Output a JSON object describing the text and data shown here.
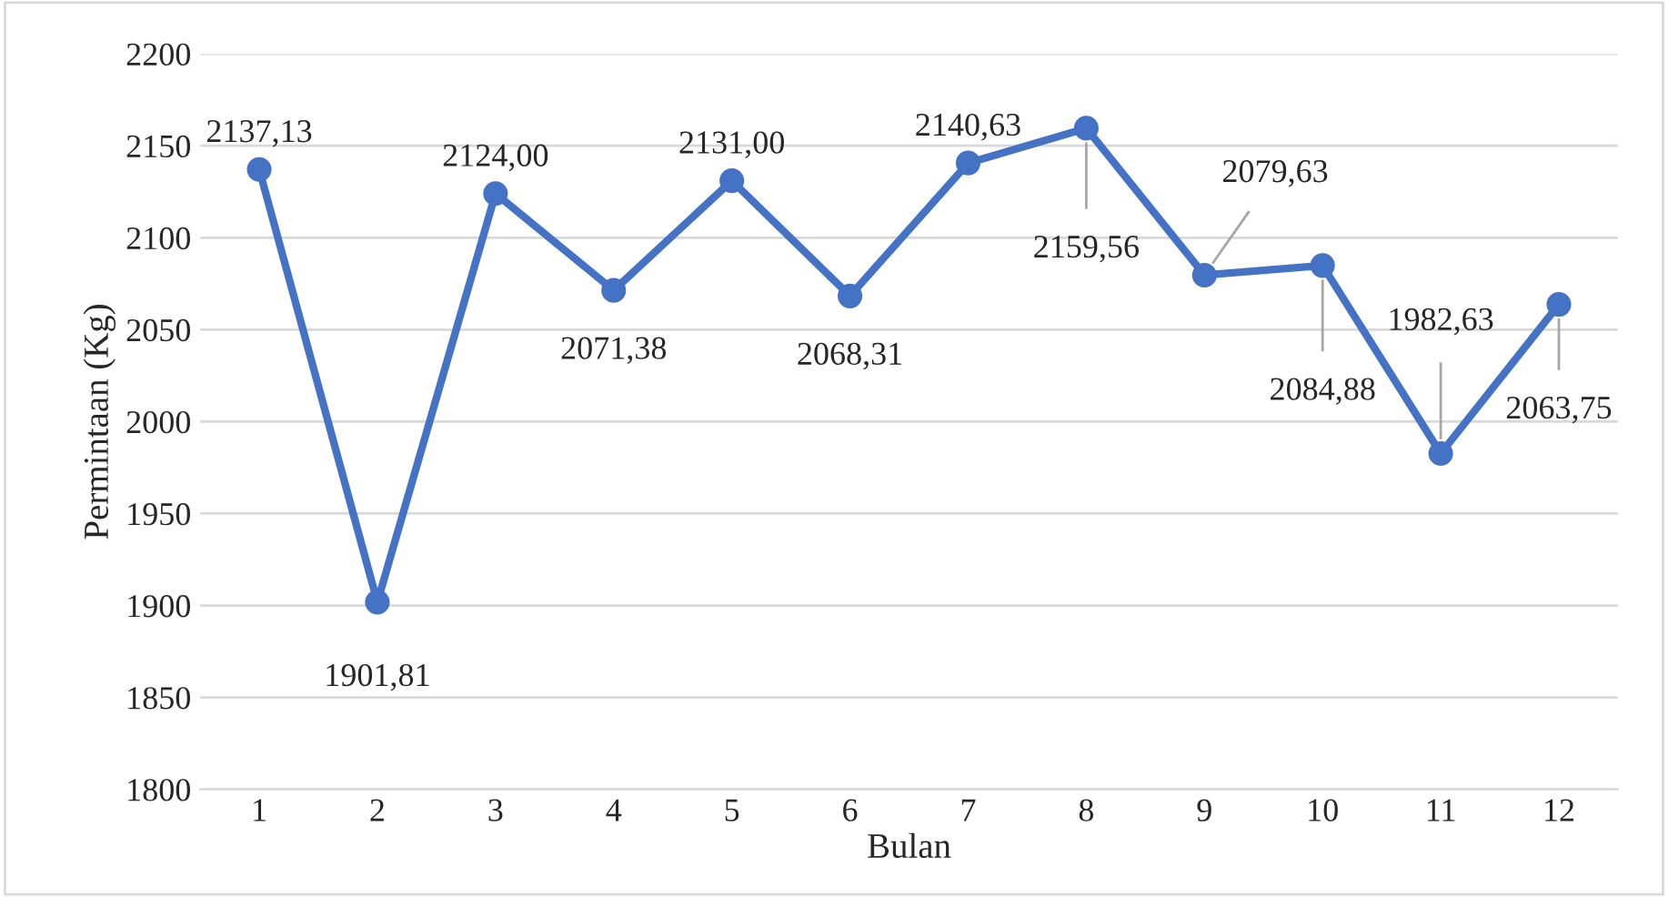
{
  "chart_data": {
    "type": "line",
    "xlabel": "Bulan",
    "ylabel": "Permintaan (Kg)",
    "categories": [
      "1",
      "2",
      "3",
      "4",
      "5",
      "6",
      "7",
      "8",
      "9",
      "10",
      "11",
      "12"
    ],
    "series": [
      {
        "color": "#4472c4",
        "values": [
          2137.13,
          1901.81,
          2124.0,
          2071.38,
          2131.0,
          2068.31,
          2140.63,
          2159.56,
          2079.63,
          2084.88,
          1982.63,
          2063.75
        ],
        "value_labels": [
          "2137,13",
          "1901,81",
          "2124,00",
          "2071,38",
          "2131,00",
          "2068,31",
          "2140,63",
          "2159,56",
          "2079,63",
          "2084,88",
          "1982,63",
          "2063,75"
        ]
      }
    ],
    "ylim": [
      1800,
      2200
    ],
    "yticks": [
      1800,
      1850,
      1900,
      1950,
      2000,
      2050,
      2100,
      2150,
      2200
    ],
    "grid": "y",
    "marker": "circle",
    "line_style": "solid"
  }
}
